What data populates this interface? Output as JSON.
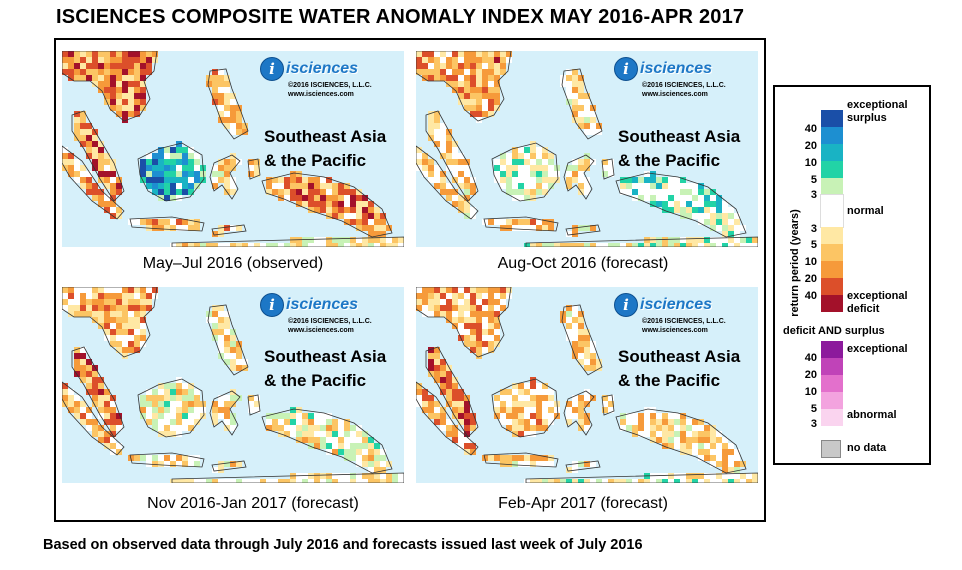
{
  "title": "ISCIENCES COMPOSITE WATER ANOMALY INDEX MAY 2016-APR 2017",
  "logo": {
    "name": "isciences",
    "copyright": "©2016 ISCIENCES, L.L.C.",
    "url": "www.isciences.com"
  },
  "region": {
    "line1": "Southeast Asia",
    "line2": "& the Pacific"
  },
  "panels": [
    {
      "caption": "May–Jul 2016 (observed)",
      "palette": "observed"
    },
    {
      "caption": "Aug-Oct 2016 (forecast)",
      "palette": "aug"
    },
    {
      "caption": "Nov 2016-Jan 2017 (forecast)",
      "palette": "nov"
    },
    {
      "caption": "Feb-Apr 2017 (forecast)",
      "palette": "feb"
    }
  ],
  "legend": {
    "axis_title": "return period (years)",
    "exceptional_surplus": [
      "exceptional",
      "surplus"
    ],
    "normal": "normal",
    "exceptional_deficit": [
      "exceptional",
      "deficit"
    ],
    "deficit_and_surplus": "deficit AND surplus",
    "exceptional": "exceptional",
    "abnormal": "abnormal",
    "no_data": "no data",
    "surplus_ticks": [
      "40",
      "20",
      "10",
      "5",
      "3"
    ],
    "deficit_ticks": [
      "3",
      "5",
      "10",
      "20",
      "40"
    ],
    "both_ticks": [
      "40",
      "20",
      "10",
      "5",
      "3"
    ],
    "colors": {
      "surplus": [
        "#1a4fa8",
        "#1d8fd1",
        "#19b3c4",
        "#22d3a6",
        "#c8f2b6"
      ],
      "normal": "#ffffff",
      "deficit": [
        "#ffe8a4",
        "#fcc564",
        "#f69a3a",
        "#dc4f2a",
        "#a3112a"
      ],
      "both": [
        "#8c1a9c",
        "#c043b8",
        "#e370cc",
        "#f3a3df",
        "#fad4ef"
      ],
      "no_data": "#c8c8c8",
      "ocean": "#d6f0fa"
    }
  },
  "footer": "Based on observed data through July 2016 and forecasts issued last week of July 2016"
}
